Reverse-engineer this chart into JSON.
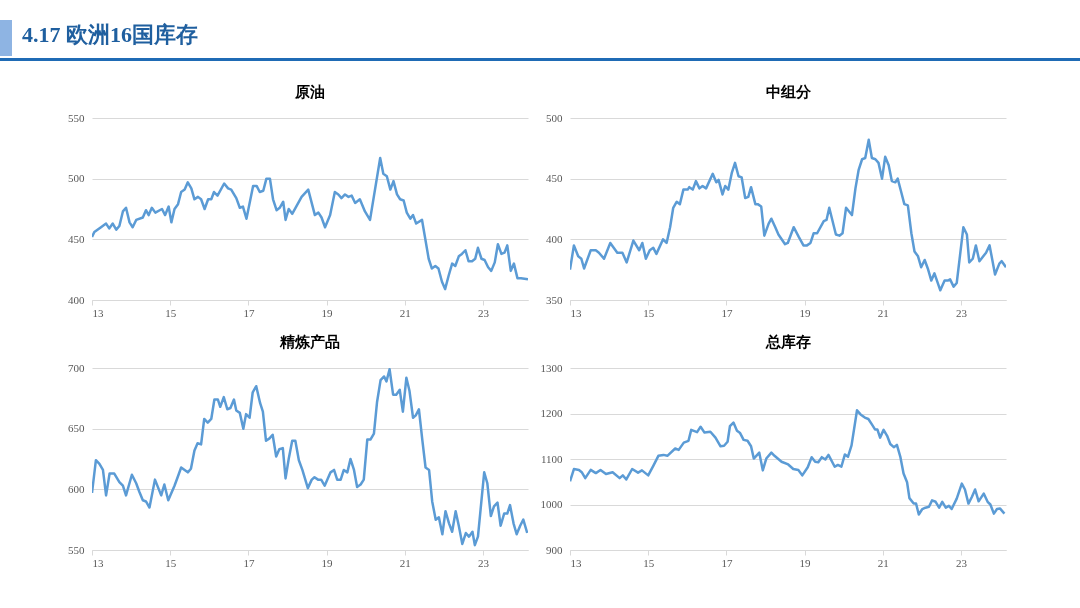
{
  "chart_data": [
    {
      "type": "line",
      "title": "原油",
      "annotations": [
        "4.17 欧洲16国库存"
      ],
      "xlim": [
        13,
        24.15
      ],
      "xticks": [
        13,
        15,
        17,
        19,
        21,
        23
      ],
      "ylim": [
        400,
        550
      ],
      "yticks": [
        400,
        450,
        500,
        550
      ],
      "grid": "y",
      "x": [
        13.0,
        13.06,
        13.23,
        13.36,
        13.44,
        13.53,
        13.62,
        13.7,
        13.79,
        13.87,
        13.96,
        14.04,
        14.13,
        14.3,
        14.38,
        14.45,
        14.53,
        14.62,
        14.79,
        14.87,
        14.96,
        15.03,
        15.11,
        15.2,
        15.28,
        15.37,
        15.45,
        15.54,
        15.62,
        15.71,
        15.79,
        15.88,
        15.97,
        16.05,
        16.12,
        16.21,
        16.38,
        16.48,
        16.56,
        16.69,
        16.78,
        16.86,
        16.95,
        17.12,
        17.21,
        17.29,
        17.38,
        17.46,
        17.55,
        17.63,
        17.72,
        17.8,
        17.89,
        17.95,
        18.03,
        18.12,
        18.36,
        18.53,
        18.7,
        18.79,
        18.87,
        18.96,
        19.09,
        19.21,
        19.3,
        19.38,
        19.47,
        19.56,
        19.64,
        19.73,
        19.85,
        19.98,
        20.11,
        20.37,
        20.45,
        20.54,
        20.63,
        20.71,
        20.8,
        20.88,
        20.97,
        21.05,
        21.14,
        21.21,
        21.29,
        21.44,
        21.61,
        21.69,
        21.78,
        21.86,
        21.95,
        22.03,
        22.12,
        22.21,
        22.29,
        22.38,
        22.46,
        22.55,
        22.63,
        22.72,
        22.8,
        22.87,
        22.96,
        23.04,
        23.13,
        23.21,
        23.3,
        23.38,
        23.47,
        23.55,
        23.62,
        23.71,
        23.79,
        23.88,
        23.97,
        24.15
      ],
      "series": [
        {
          "color": "#5b9bd5",
          "values": [
            452,
            456,
            460,
            463,
            459,
            463,
            458,
            461,
            473,
            476,
            464,
            460,
            466,
            468,
            474,
            470,
            476,
            472,
            475,
            470,
            477,
            464,
            475,
            479,
            489,
            491,
            497,
            492,
            483,
            485,
            483,
            475,
            483,
            483,
            489,
            486,
            496,
            492,
            491,
            484,
            476,
            477,
            467,
            494,
            494,
            489,
            490,
            500,
            500,
            483,
            474,
            476,
            481,
            466,
            475,
            471,
            485,
            491,
            470,
            472,
            468,
            460,
            470,
            489,
            487,
            484,
            487,
            485,
            486,
            480,
            483,
            473,
            466,
            517,
            504,
            502,
            491,
            498,
            487,
            483,
            482,
            472,
            467,
            470,
            463,
            466,
            434,
            426,
            428,
            426,
            415,
            409,
            420,
            430,
            428,
            436,
            438,
            441,
            432,
            432,
            434,
            443,
            434,
            433,
            427,
            424,
            431,
            446,
            438,
            439,
            445,
            424,
            430,
            418,
            418,
            417
          ]
        }
      ]
    },
    {
      "type": "line",
      "title": "中组分",
      "xlim": [
        13,
        24.15
      ],
      "xticks": [
        13,
        15,
        17,
        19,
        21,
        23
      ],
      "ylim": [
        350,
        500
      ],
      "yticks": [
        350,
        400,
        450,
        500
      ],
      "grid": "y",
      "x": [
        13.0,
        13.1,
        13.21,
        13.29,
        13.36,
        13.53,
        13.66,
        13.74,
        13.87,
        14.03,
        14.21,
        14.34,
        14.45,
        14.62,
        14.77,
        14.85,
        14.94,
        15.04,
        15.13,
        15.21,
        15.38,
        15.47,
        15.56,
        15.64,
        15.73,
        15.81,
        15.9,
        16.01,
        16.05,
        16.14,
        16.22,
        16.31,
        16.39,
        16.48,
        16.65,
        16.74,
        16.8,
        16.9,
        16.97,
        17.05,
        17.14,
        17.22,
        17.31,
        17.39,
        17.48,
        17.56,
        17.63,
        17.74,
        17.8,
        17.89,
        17.97,
        18.08,
        18.15,
        18.25,
        18.33,
        18.5,
        18.57,
        18.72,
        18.85,
        18.97,
        19.06,
        19.15,
        19.23,
        19.32,
        19.49,
        19.56,
        19.63,
        19.8,
        19.89,
        19.97,
        20.06,
        20.21,
        20.3,
        20.38,
        20.47,
        20.55,
        20.64,
        20.72,
        20.81,
        20.89,
        20.98,
        21.06,
        21.15,
        21.23,
        21.32,
        21.38,
        21.47,
        21.55,
        21.64,
        21.73,
        21.81,
        21.9,
        21.98,
        22.07,
        22.15,
        22.24,
        22.32,
        22.47,
        22.58,
        22.66,
        22.72,
        22.81,
        22.89,
        23.06,
        23.15,
        23.21,
        23.3,
        23.38,
        23.47,
        23.64,
        23.73,
        23.87,
        23.98,
        24.04,
        24.15
      ],
      "series": [
        {
          "color": "#5b9bd5",
          "values": [
            375,
            395,
            386,
            384,
            376,
            391,
            391,
            389,
            384,
            397,
            389,
            389,
            381,
            399,
            391,
            397,
            384,
            391,
            393,
            388,
            400,
            397,
            410,
            426,
            431,
            429,
            441,
            441,
            443,
            441,
            448,
            442,
            444,
            442,
            454,
            447,
            449,
            437,
            444,
            441,
            455,
            463,
            452,
            451,
            434,
            435,
            443,
            429,
            429,
            427,
            403,
            413,
            417,
            410,
            404,
            396,
            397,
            410,
            402,
            395,
            395,
            397,
            405,
            405,
            415,
            416,
            426,
            404,
            403,
            405,
            426,
            420,
            442,
            457,
            466,
            467,
            482,
            467,
            466,
            463,
            450,
            468,
            461,
            448,
            447,
            450,
            439,
            429,
            428,
            405,
            390,
            386,
            377,
            383,
            376,
            366,
            372,
            358,
            366,
            366,
            367,
            361,
            364,
            410,
            404,
            381,
            384,
            395,
            382,
            389,
            395,
            371,
            380,
            382,
            377
          ]
        }
      ]
    },
    {
      "type": "line",
      "title": "精炼产品",
      "xlim": [
        13,
        24.15
      ],
      "xticks": [
        13,
        15,
        17,
        19,
        21,
        23
      ],
      "ylim": [
        550,
        700
      ],
      "yticks": [
        550,
        600,
        650,
        700
      ],
      "grid": "y",
      "x": [
        13.0,
        13.1,
        13.19,
        13.28,
        13.36,
        13.45,
        13.57,
        13.7,
        13.79,
        13.87,
        14.02,
        14.13,
        14.21,
        14.3,
        14.38,
        14.47,
        14.61,
        14.77,
        14.85,
        14.95,
        15.11,
        15.19,
        15.28,
        15.45,
        15.53,
        15.62,
        15.7,
        15.79,
        15.87,
        15.96,
        16.05,
        16.13,
        16.22,
        16.28,
        16.37,
        16.46,
        16.54,
        16.63,
        16.69,
        16.78,
        16.87,
        16.94,
        17.03,
        17.11,
        17.2,
        17.3,
        17.37,
        17.45,
        17.54,
        17.62,
        17.71,
        17.79,
        17.88,
        17.95,
        18.03,
        18.12,
        18.2,
        18.29,
        18.38,
        18.52,
        18.62,
        18.69,
        18.78,
        18.86,
        18.95,
        19.1,
        19.19,
        19.27,
        19.36,
        19.44,
        19.53,
        19.61,
        19.7,
        19.78,
        19.87,
        19.95,
        20.04,
        20.12,
        20.21,
        20.29,
        20.38,
        20.47,
        20.53,
        20.61,
        20.7,
        20.78,
        20.87,
        20.95,
        21.04,
        21.12,
        21.21,
        21.28,
        21.36,
        21.45,
        21.53,
        21.62,
        21.7,
        21.79,
        21.87,
        21.96,
        22.04,
        22.13,
        22.21,
        22.3,
        22.38,
        22.47,
        22.56,
        22.64,
        22.73,
        22.79,
        22.87,
        23.03,
        23.11,
        23.2,
        23.28,
        23.37,
        23.45,
        23.54,
        23.62,
        23.69,
        23.78,
        23.86,
        23.95,
        24.03,
        24.13
      ],
      "series": [
        {
          "color": "#5b9bd5",
          "values": [
            597,
            624,
            621,
            616,
            595,
            613,
            613,
            606,
            603,
            595,
            612,
            605,
            598,
            591,
            590,
            585,
            608,
            595,
            604,
            591,
            603,
            610,
            618,
            614,
            617,
            632,
            638,
            637,
            658,
            655,
            658,
            674,
            674,
            668,
            676,
            666,
            667,
            674,
            665,
            663,
            650,
            662,
            659,
            680,
            685,
            671,
            664,
            640,
            642,
            645,
            627,
            633,
            634,
            609,
            625,
            640,
            640,
            624,
            616,
            601,
            608,
            610,
            608,
            608,
            603,
            614,
            616,
            608,
            608,
            616,
            614,
            625,
            616,
            602,
            604,
            608,
            641,
            641,
            646,
            672,
            690,
            693,
            689,
            699,
            678,
            678,
            682,
            664,
            692,
            681,
            659,
            661,
            666,
            640,
            618,
            616,
            590,
            575,
            577,
            563,
            582,
            572,
            565,
            582,
            570,
            555,
            564,
            561,
            565,
            554,
            561,
            614,
            605,
            578,
            586,
            589,
            570,
            580,
            580,
            587,
            572,
            563,
            570,
            575,
            564
          ]
        }
      ]
    },
    {
      "type": "line",
      "title": "总库存",
      "xlim": [
        13,
        24.15
      ],
      "xticks": [
        13,
        15,
        17,
        19,
        21,
        23
      ],
      "ylim": [
        900,
        1300
      ],
      "yticks": [
        900,
        1000,
        1100,
        1200,
        1300
      ],
      "grid": "y",
      "x": [
        13.0,
        13.1,
        13.23,
        13.3,
        13.39,
        13.53,
        13.66,
        13.78,
        13.92,
        14.09,
        14.27,
        14.35,
        14.44,
        14.59,
        14.74,
        14.84,
        15.0,
        15.13,
        15.26,
        15.39,
        15.49,
        15.69,
        15.78,
        15.91,
        16.03,
        16.1,
        16.25,
        16.34,
        16.44,
        16.59,
        16.72,
        16.85,
        16.94,
        17.03,
        17.09,
        17.18,
        17.27,
        17.35,
        17.44,
        17.54,
        17.63,
        17.7,
        17.84,
        17.93,
        18.02,
        18.15,
        18.23,
        18.41,
        18.58,
        18.71,
        18.84,
        18.94,
        19.08,
        19.18,
        19.27,
        19.35,
        19.44,
        19.53,
        19.61,
        19.77,
        19.85,
        19.94,
        20.03,
        20.11,
        20.2,
        20.34,
        20.43,
        20.54,
        20.63,
        20.72,
        20.8,
        20.86,
        20.93,
        21.02,
        21.11,
        21.19,
        21.28,
        21.36,
        21.45,
        21.53,
        21.62,
        21.68,
        21.79,
        21.85,
        21.92,
        22.01,
        22.09,
        22.18,
        22.26,
        22.35,
        22.44,
        22.52,
        22.61,
        22.69,
        22.76,
        22.89,
        23.02,
        23.1,
        23.19,
        23.28,
        23.36,
        23.45,
        23.58,
        23.68,
        23.75,
        23.84,
        23.92,
        24.0,
        24.11
      ],
      "series": [
        {
          "color": "#5b9bd5",
          "values": [
            1051,
            1078,
            1076,
            1071,
            1058,
            1076,
            1069,
            1076,
            1067,
            1071,
            1058,
            1064,
            1055,
            1078,
            1070,
            1075,
            1064,
            1085,
            1107,
            1109,
            1107,
            1123,
            1120,
            1136,
            1140,
            1164,
            1159,
            1171,
            1158,
            1160,
            1147,
            1128,
            1129,
            1138,
            1172,
            1180,
            1162,
            1157,
            1142,
            1140,
            1128,
            1101,
            1114,
            1075,
            1101,
            1114,
            1107,
            1094,
            1088,
            1078,
            1076,
            1064,
            1082,
            1104,
            1094,
            1093,
            1104,
            1099,
            1109,
            1083,
            1087,
            1083,
            1110,
            1105,
            1130,
            1207,
            1198,
            1191,
            1188,
            1176,
            1165,
            1165,
            1147,
            1164,
            1151,
            1133,
            1126,
            1131,
            1104,
            1068,
            1049,
            1014,
            1002,
            1002,
            978,
            990,
            993,
            995,
            1009,
            1006,
            993,
            1006,
            993,
            997,
            990,
            1013,
            1046,
            1033,
            1002,
            1017,
            1033,
            1007,
            1024,
            1006,
            1000,
            980,
            990,
            991,
            980
          ]
        }
      ]
    }
  ]
}
